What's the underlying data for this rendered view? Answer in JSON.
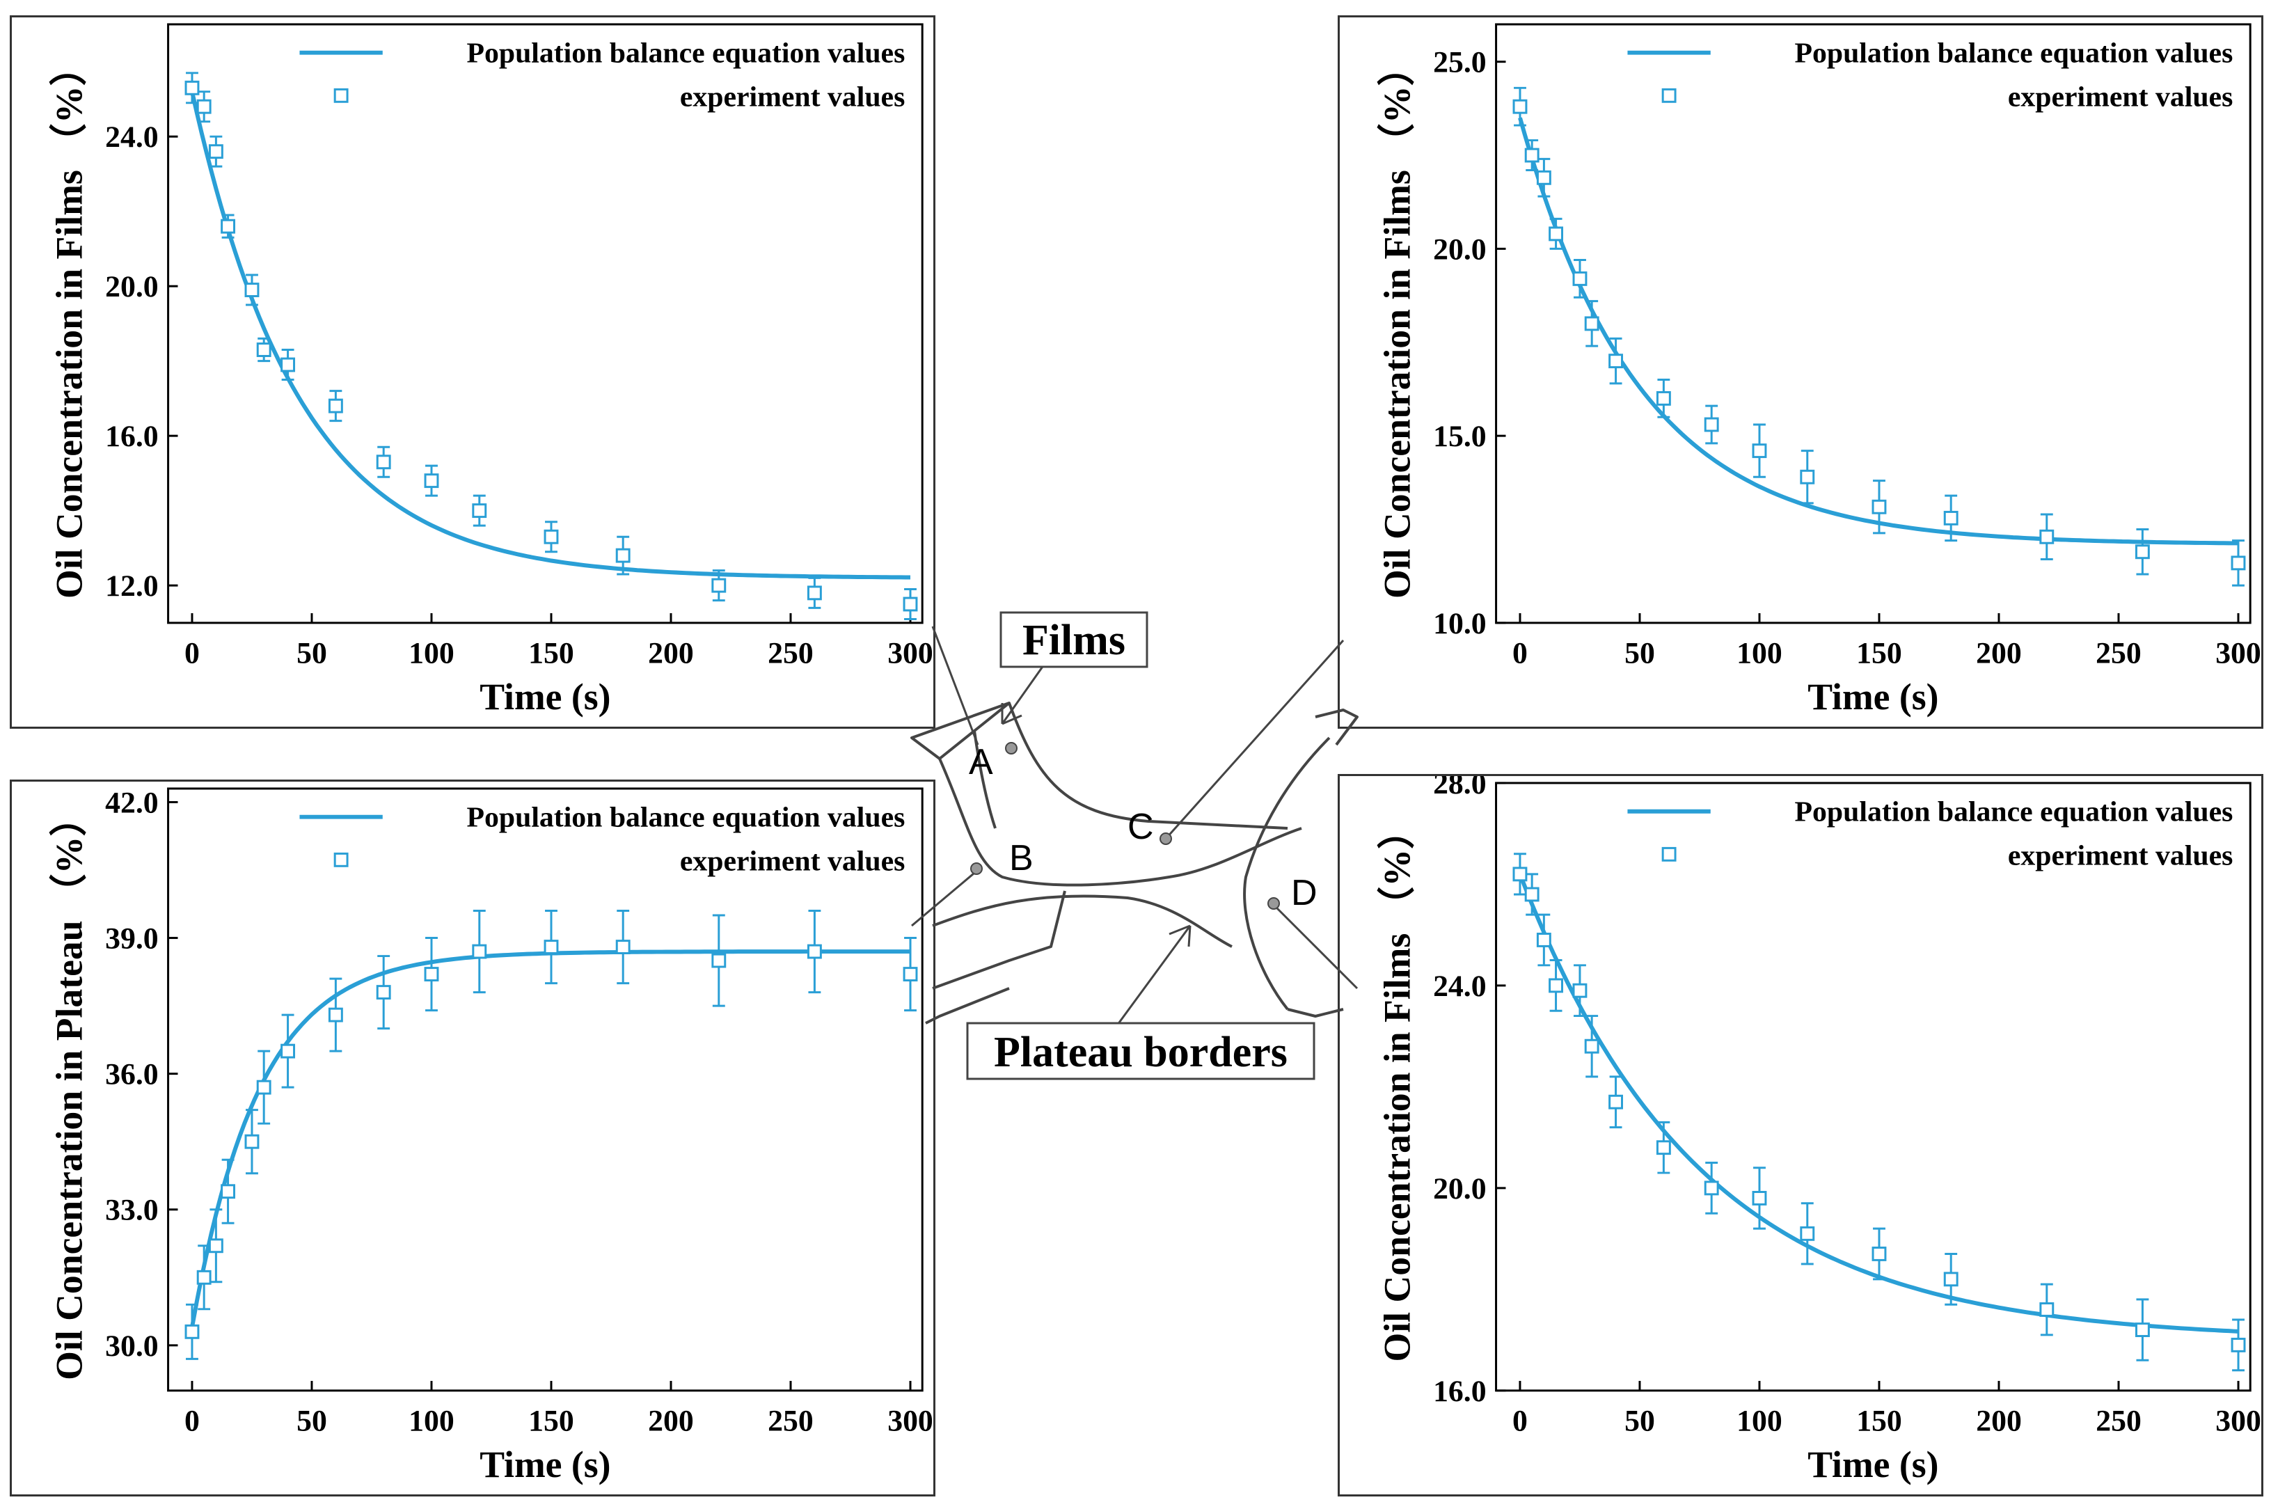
{
  "colors": {
    "series": "#2a9fd6",
    "frame": "#333333",
    "diagram": "#444444"
  },
  "legend_labels": {
    "fit": "Population balance equation values",
    "exp": "experiment values"
  },
  "diagram": {
    "films_label": "Films",
    "plateau_label": "Plateau borders",
    "points": [
      "A",
      "B",
      "C",
      "D"
    ]
  },
  "chart_data": [
    {
      "id": "top-left",
      "type": "line",
      "xlabel": "Time  (s)",
      "ylabel": "Oil Concentration in Films  （%）",
      "xlim": [
        -10,
        305
      ],
      "ylim": [
        11.0,
        27.0
      ],
      "xticks": [
        0,
        50,
        100,
        150,
        200,
        250,
        300
      ],
      "yticks": [
        12.0,
        16.0,
        20.0,
        24.0
      ],
      "series": [
        {
          "name": "Population balance equation values",
          "kind": "fit",
          "model": {
            "y_inf": 12.2,
            "y0": 25.2,
            "tau": 45
          }
        },
        {
          "name": "experiment values",
          "kind": "scatter",
          "x": [
            0,
            5,
            10,
            15,
            25,
            30,
            40,
            60,
            80,
            100,
            120,
            150,
            180,
            220,
            260,
            300
          ],
          "y": [
            25.3,
            24.8,
            23.6,
            21.6,
            19.9,
            18.3,
            17.9,
            16.8,
            15.3,
            14.8,
            14.0,
            13.3,
            12.8,
            12.0,
            11.8,
            11.5
          ],
          "err": [
            0.4,
            0.4,
            0.4,
            0.3,
            0.4,
            0.3,
            0.4,
            0.4,
            0.4,
            0.4,
            0.4,
            0.4,
            0.5,
            0.4,
            0.4,
            0.4
          ]
        }
      ]
    },
    {
      "id": "top-right",
      "type": "line",
      "xlabel": "Time  (s)",
      "ylabel": "Oil Concentration in Films  （%）",
      "xlim": [
        -10,
        305
      ],
      "ylim": [
        10.0,
        26.0
      ],
      "xticks": [
        0,
        50,
        100,
        150,
        200,
        250,
        300
      ],
      "yticks": [
        10.0,
        15.0,
        20.0,
        25.0
      ],
      "series": [
        {
          "name": "Population balance equation values",
          "kind": "fit",
          "model": {
            "y_inf": 12.1,
            "y0": 23.5,
            "tau": 50
          }
        },
        {
          "name": "experiment values",
          "kind": "scatter",
          "x": [
            0,
            5,
            10,
            15,
            25,
            30,
            40,
            60,
            80,
            100,
            120,
            150,
            180,
            220,
            260,
            300
          ],
          "y": [
            23.8,
            22.5,
            21.9,
            20.4,
            19.2,
            18.0,
            17.0,
            16.0,
            15.3,
            14.6,
            13.9,
            13.1,
            12.8,
            12.3,
            11.9,
            11.6
          ],
          "err": [
            0.5,
            0.4,
            0.5,
            0.4,
            0.5,
            0.6,
            0.6,
            0.5,
            0.5,
            0.7,
            0.7,
            0.7,
            0.6,
            0.6,
            0.6,
            0.6
          ]
        }
      ]
    },
    {
      "id": "bottom-left",
      "type": "line",
      "xlabel": "Time  (s)",
      "ylabel": "Oil Concentration in Plateau  （%）",
      "xlim": [
        -10,
        305
      ],
      "ylim": [
        29.0,
        42.3
      ],
      "xticks": [
        0,
        50,
        100,
        150,
        200,
        250,
        300
      ],
      "yticks": [
        30.0,
        33.0,
        36.0,
        39.0,
        42.0
      ],
      "series": [
        {
          "name": "Population balance equation values",
          "kind": "fit",
          "model": {
            "y_inf": 38.7,
            "y0": 30.4,
            "tau": 28
          }
        },
        {
          "name": "experiment values",
          "kind": "scatter",
          "x": [
            0,
            5,
            10,
            15,
            25,
            30,
            40,
            60,
            80,
            100,
            120,
            150,
            180,
            220,
            260,
            300
          ],
          "y": [
            30.3,
            31.5,
            32.2,
            33.4,
            34.5,
            35.7,
            36.5,
            37.3,
            37.8,
            38.2,
            38.7,
            38.8,
            38.8,
            38.5,
            38.7,
            38.2
          ],
          "err": [
            0.6,
            0.7,
            0.8,
            0.7,
            0.7,
            0.8,
            0.8,
            0.8,
            0.8,
            0.8,
            0.9,
            0.8,
            0.8,
            1.0,
            0.9,
            0.8
          ]
        }
      ]
    },
    {
      "id": "bottom-right",
      "type": "line",
      "xlabel": "Time  (s)",
      "ylabel": "Oil Concentration in Films  （%）",
      "xlim": [
        -10,
        305
      ],
      "ylim": [
        16.0,
        28.0
      ],
      "xticks": [
        0,
        50,
        100,
        150,
        200,
        250,
        300
      ],
      "yticks": [
        16.0,
        20.0,
        24.0,
        28.0
      ],
      "series": [
        {
          "name": "Population balance equation values",
          "kind": "fit",
          "model": {
            "y_inf": 17.0,
            "y0": 26.2,
            "tau": 75
          }
        },
        {
          "name": "experiment values",
          "kind": "scatter",
          "x": [
            0,
            5,
            10,
            15,
            25,
            30,
            40,
            60,
            80,
            100,
            120,
            150,
            180,
            220,
            260,
            300
          ],
          "y": [
            26.2,
            25.8,
            24.9,
            24.0,
            23.9,
            22.8,
            21.7,
            20.8,
            20.0,
            19.8,
            19.1,
            18.7,
            18.2,
            17.6,
            17.2,
            16.9
          ],
          "err": [
            0.4,
            0.4,
            0.5,
            0.5,
            0.5,
            0.6,
            0.5,
            0.5,
            0.5,
            0.6,
            0.6,
            0.5,
            0.5,
            0.5,
            0.6,
            0.5
          ]
        }
      ]
    }
  ]
}
